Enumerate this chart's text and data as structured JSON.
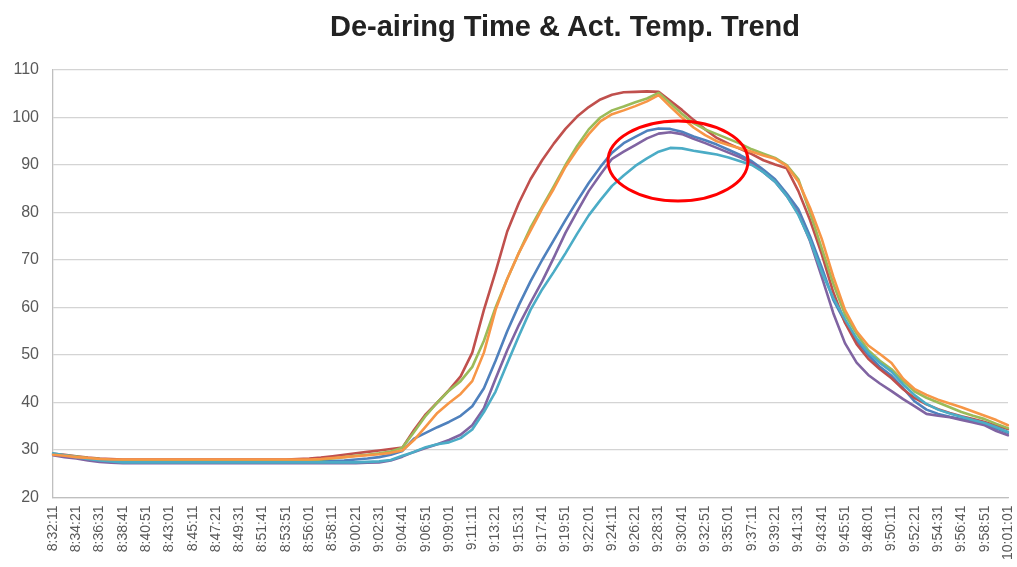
{
  "chart_data": {
    "type": "line",
    "title": "De-airing Time & Act. Temp. Trend",
    "categories": [
      "8:32:11",
      null,
      "8:34:21",
      null,
      "8:36:31",
      null,
      "8:38:41",
      null,
      "8:40:51",
      null,
      "8:43:01",
      null,
      "8:45:11",
      null,
      "8:47:21",
      null,
      "8:49:31",
      null,
      "8:51:41",
      null,
      "8:53:51",
      null,
      "8:56:01",
      null,
      "8:58:11",
      null,
      "9:00:21",
      null,
      "9:02:31",
      null,
      "9:04:41",
      null,
      "9:06:51",
      null,
      "9:09:01",
      null,
      "9:11:11",
      null,
      "9:13:21",
      null,
      "9:15:31",
      null,
      "9:17:41",
      null,
      "9:19:51",
      null,
      "9:22:01",
      null,
      "9:24:11",
      null,
      "9:26:21",
      null,
      "9:28:31",
      null,
      "9:30:41",
      null,
      "9:32:51",
      null,
      "9:35:01",
      null,
      "9:37:11",
      null,
      "9:39:21",
      null,
      "9:41:31",
      null,
      "9:43:41",
      null,
      "9:45:51",
      null,
      "9:48:01",
      null,
      "9:50:11",
      null,
      "9:52:21",
      null,
      "9:54:31",
      null,
      "9:56:41",
      null,
      "9:58:51",
      null,
      "10:01:01"
    ],
    "series": [
      {
        "color": "#4f81bd",
        "values": [
          29.0,
          28.7,
          28.4,
          28.1,
          27.8,
          27.6,
          27.5,
          27.5,
          27.5,
          27.5,
          27.5,
          27.5,
          27.5,
          27.5,
          27.5,
          27.5,
          27.5,
          27.5,
          27.5,
          27.5,
          27.5,
          27.5,
          27.5,
          27.6,
          27.7,
          27.8,
          28.0,
          28.2,
          28.5,
          29.0,
          29.8,
          32.4,
          33.6,
          34.8,
          35.9,
          37.2,
          39.2,
          43.0,
          48.8,
          55.0,
          60.5,
          65.5,
          70.0,
          74.2,
          78.4,
          82.4,
          86.2,
          89.6,
          92.6,
          94.6,
          95.9,
          97.2,
          97.7,
          97.6,
          97.0,
          96.0,
          95.2,
          94.3,
          93.2,
          92.1,
          90.8,
          89.0,
          87.0,
          84.0,
          80.7,
          75.0,
          68.5,
          61.6,
          57.0,
          53.0,
          50.0,
          47.5,
          45.6,
          43.0,
          40.2,
          38.5,
          37.6,
          37.0,
          36.5,
          36.0,
          35.5,
          34.5,
          33.6
        ]
      },
      {
        "color": "#c0504d",
        "values": [
          29.2,
          29.0,
          28.7,
          28.4,
          28.2,
          28.1,
          28.0,
          28.0,
          28.0,
          28.0,
          28.0,
          28.0,
          28.0,
          28.0,
          28.0,
          28.0,
          28.0,
          28.0,
          28.0,
          28.0,
          28.0,
          28.1,
          28.2,
          28.4,
          28.7,
          29.0,
          29.3,
          29.6,
          29.9,
          30.2,
          30.5,
          34.2,
          37.5,
          40.0,
          42.6,
          45.5,
          50.5,
          59.5,
          67.5,
          76.0,
          82.0,
          87.0,
          91.0,
          94.5,
          97.6,
          100.2,
          102.2,
          103.8,
          104.8,
          105.3,
          105.4,
          105.5,
          105.4,
          103.5,
          101.6,
          99.5,
          97.5,
          95.7,
          94.5,
          93.4,
          92.3,
          91.0,
          90.1,
          89.3,
          84.5,
          78.4,
          71.3,
          63.2,
          56.8,
          52.3,
          49.2,
          47.0,
          45.1,
          42.8,
          40.9,
          39.6,
          38.6,
          37.8,
          37.1,
          36.5,
          35.9,
          35.1,
          34.4
        ]
      },
      {
        "color": "#9bbb59",
        "values": [
          29.1,
          28.9,
          28.6,
          28.3,
          28.1,
          27.9,
          27.8,
          27.8,
          27.8,
          27.8,
          27.8,
          27.8,
          27.8,
          27.8,
          27.8,
          27.8,
          27.8,
          27.8,
          27.8,
          27.8,
          27.8,
          27.8,
          27.8,
          28.0,
          28.2,
          28.5,
          28.8,
          29.0,
          29.3,
          29.7,
          30.5,
          33.8,
          37.2,
          40.0,
          42.5,
          44.5,
          47.5,
          53.0,
          60.0,
          66.0,
          71.5,
          76.8,
          81.2,
          85.5,
          90.0,
          94.0,
          97.5,
          100.0,
          101.5,
          102.3,
          103.2,
          104.0,
          105.2,
          103.0,
          100.8,
          98.8,
          97.5,
          96.5,
          95.5,
          94.5,
          93.3,
          92.4,
          91.5,
          90.0,
          87.0,
          80.0,
          72.5,
          65.0,
          58.5,
          54.5,
          51.0,
          48.8,
          47.0,
          44.5,
          42.3,
          41.0,
          40.0,
          39.0,
          38.0,
          37.2,
          36.5,
          35.5,
          34.6
        ]
      },
      {
        "color": "#8064a2",
        "values": [
          28.9,
          28.5,
          28.2,
          27.8,
          27.5,
          27.3,
          27.2,
          27.2,
          27.2,
          27.2,
          27.2,
          27.2,
          27.2,
          27.2,
          27.2,
          27.2,
          27.2,
          27.2,
          27.2,
          27.2,
          27.2,
          27.2,
          27.2,
          27.2,
          27.2,
          27.2,
          27.2,
          27.3,
          27.4,
          27.8,
          28.6,
          29.6,
          30.4,
          31.2,
          32.1,
          33.2,
          35.2,
          38.8,
          45.0,
          51.0,
          56.3,
          61.0,
          65.5,
          70.5,
          75.7,
          80.2,
          84.5,
          88.0,
          91.3,
          92.8,
          94.2,
          95.6,
          96.6,
          96.9,
          96.5,
          95.5,
          94.6,
          93.6,
          92.6,
          91.6,
          90.4,
          88.5,
          86.5,
          83.5,
          79.8,
          74.0,
          66.5,
          58.8,
          52.5,
          48.4,
          45.8,
          44.0,
          42.4,
          40.7,
          39.2,
          37.6,
          37.2,
          36.9,
          36.3,
          35.8,
          35.2,
          34.0,
          33.1
        ]
      },
      {
        "color": "#4bacc6",
        "values": [
          29.3,
          28.9,
          28.5,
          28.1,
          27.8,
          27.6,
          27.4,
          27.4,
          27.4,
          27.4,
          27.4,
          27.4,
          27.4,
          27.4,
          27.4,
          27.4,
          27.4,
          27.4,
          27.4,
          27.4,
          27.4,
          27.4,
          27.4,
          27.4,
          27.4,
          27.4,
          27.4,
          27.5,
          27.6,
          27.9,
          28.8,
          29.6,
          30.6,
          31.2,
          31.6,
          32.5,
          34.3,
          38.0,
          42.3,
          48.2,
          54.0,
          59.5,
          63.8,
          67.5,
          71.4,
          75.5,
          79.4,
          82.6,
          85.6,
          87.8,
          89.8,
          91.4,
          92.8,
          93.6,
          93.5,
          93.0,
          92.6,
          92.2,
          91.6,
          90.8,
          90.0,
          88.5,
          86.5,
          83.5,
          79.5,
          74.2,
          67.5,
          62.0,
          57.5,
          53.5,
          50.5,
          48.3,
          46.5,
          43.8,
          41.5,
          39.7,
          38.5,
          37.7,
          37.0,
          36.3,
          35.7,
          34.8,
          33.8
        ]
      },
      {
        "color": "#f79646",
        "values": [
          29.0,
          28.8,
          28.5,
          28.3,
          28.1,
          28.0,
          28.0,
          28.0,
          28.0,
          28.0,
          28.0,
          28.0,
          28.0,
          28.0,
          28.0,
          28.0,
          28.0,
          28.0,
          28.0,
          28.0,
          28.0,
          28.0,
          28.0,
          28.1,
          28.3,
          28.5,
          28.7,
          28.9,
          29.1,
          29.4,
          29.9,
          32.1,
          34.9,
          37.8,
          39.9,
          41.8,
          44.5,
          50.5,
          59.5,
          66.0,
          71.5,
          76.2,
          80.8,
          85.0,
          89.6,
          93.2,
          96.5,
          99.2,
          100.7,
          101.5,
          102.4,
          103.4,
          104.7,
          102.3,
          100.0,
          97.9,
          96.3,
          95.0,
          94.2,
          93.5,
          92.8,
          92.0,
          91.3,
          89.8,
          86.5,
          81.0,
          74.5,
          66.5,
          59.5,
          55.0,
          52.0,
          50.2,
          48.3,
          45.0,
          42.8,
          41.6,
          40.6,
          39.8,
          39.0,
          38.1,
          37.2,
          36.3,
          35.2
        ]
      }
    ],
    "ylim": [
      20,
      110
    ],
    "yticks": [
      20,
      30,
      40,
      50,
      60,
      70,
      80,
      90,
      100,
      110
    ],
    "grid": "y",
    "legend": false,
    "line_style": "solid"
  }
}
